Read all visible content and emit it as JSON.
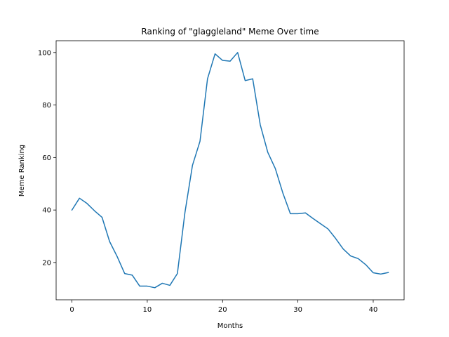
{
  "chart_data": {
    "type": "line",
    "title": "Ranking of \"glaggleland\" Meme Over time",
    "xlabel": "Months",
    "ylabel": "Meme Ranking",
    "xlim": [
      -2.1,
      44.1
    ],
    "ylim": [
      5.8,
      104.5
    ],
    "xticks": [
      0,
      10,
      20,
      30,
      40
    ],
    "yticks": [
      20,
      40,
      60,
      80,
      100
    ],
    "grid": false,
    "legend": "none",
    "line_color": "#1f77b4",
    "series": [
      {
        "x": [
          0,
          1,
          2,
          3,
          4,
          5,
          6,
          7,
          8,
          9,
          10,
          11,
          12,
          13,
          14,
          15,
          16,
          17,
          18,
          19,
          20,
          21,
          22,
          23,
          24,
          25,
          26,
          27,
          28,
          29,
          30,
          31,
          32,
          33,
          34,
          35,
          36,
          37,
          38,
          39,
          40,
          41,
          42
        ],
        "values": [
          40,
          44.5,
          42.5,
          39.7,
          37.2,
          28,
          22.3,
          15.8,
          15.2,
          11,
          11,
          10.4,
          12.1,
          11.3,
          15.8,
          39,
          57,
          66.2,
          90,
          99.5,
          97,
          96.7,
          100,
          89.3,
          90,
          72.5,
          62,
          55.8,
          46.5,
          38.6,
          38.6,
          38.9,
          36.8,
          34.8,
          32.8,
          29.2,
          25.2,
          22.5,
          21.5,
          19.2,
          16.1,
          15.6,
          16.2
        ]
      }
    ]
  }
}
